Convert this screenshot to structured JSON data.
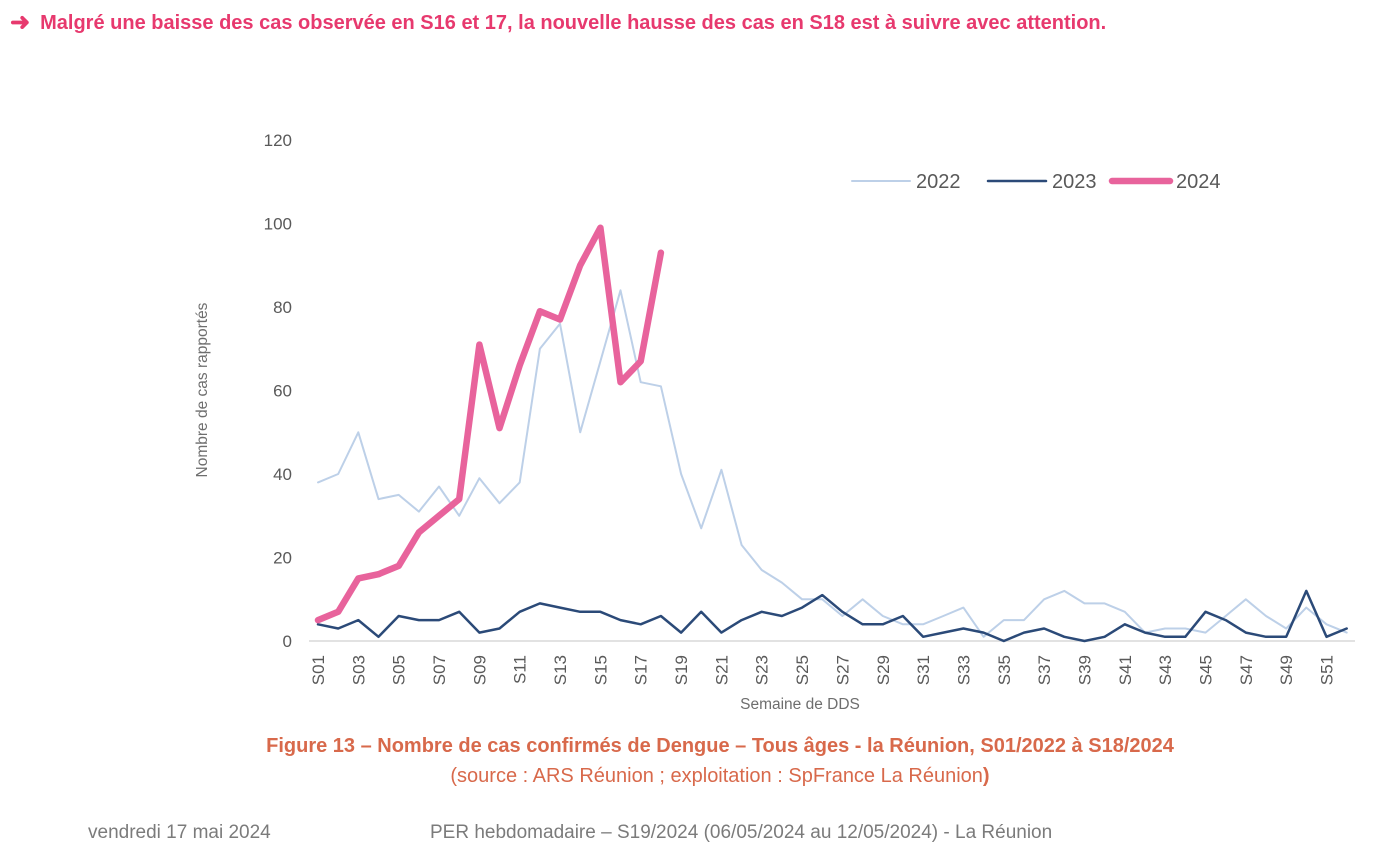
{
  "header": {
    "arrow_icon": "➜",
    "text": "Malgré une baisse des cas observée en S16 et 17, la nouvelle hausse des cas en S18 est à suivre avec attention.",
    "color": "#E7396E"
  },
  "chart_data": {
    "type": "line",
    "title": "",
    "xlabel": "Semaine de DDS",
    "ylabel": "Nombre de cas rapportés",
    "ylim": [
      0,
      120
    ],
    "ytick_step": 20,
    "x_tick_every": 2,
    "grid": false,
    "legend_position": "top-right",
    "categories": [
      "S01",
      "S02",
      "S03",
      "S04",
      "S05",
      "S06",
      "S07",
      "S08",
      "S09",
      "S10",
      "S11",
      "S12",
      "S13",
      "S14",
      "S15",
      "S16",
      "S17",
      "S18",
      "S19",
      "S20",
      "S21",
      "S22",
      "S23",
      "S24",
      "S25",
      "S26",
      "S27",
      "S28",
      "S29",
      "S30",
      "S31",
      "S32",
      "S33",
      "S34",
      "S35",
      "S36",
      "S37",
      "S38",
      "S39",
      "S40",
      "S41",
      "S42",
      "S43",
      "S44",
      "S45",
      "S46",
      "S47",
      "S48",
      "S49",
      "S50",
      "S51",
      "S52"
    ],
    "series": [
      {
        "name": "2022",
        "color": "#BDD0E8",
        "width": 2,
        "values": [
          38,
          40,
          50,
          34,
          35,
          31,
          37,
          30,
          39,
          33,
          38,
          70,
          76,
          50,
          67,
          84,
          62,
          61,
          40,
          27,
          41,
          23,
          17,
          14,
          10,
          10,
          6,
          10,
          6,
          4,
          4,
          6,
          8,
          1,
          5,
          5,
          10,
          12,
          9,
          9,
          7,
          2,
          3,
          3,
          2,
          6,
          10,
          6,
          3,
          8,
          4,
          2
        ]
      },
      {
        "name": "2023",
        "color": "#2B4A78",
        "width": 2.5,
        "values": [
          4,
          3,
          5,
          1,
          6,
          5,
          5,
          7,
          2,
          3,
          7,
          9,
          8,
          7,
          7,
          5,
          4,
          6,
          2,
          7,
          2,
          5,
          7,
          6,
          8,
          11,
          7,
          4,
          4,
          6,
          1,
          2,
          3,
          2,
          0,
          2,
          3,
          1,
          0,
          1,
          4,
          2,
          1,
          1,
          7,
          5,
          2,
          1,
          1,
          12,
          1,
          3
        ]
      },
      {
        "name": "2024",
        "color": "#E8639C",
        "width": 6.5,
        "values": [
          5,
          7,
          15,
          16,
          18,
          26,
          30,
          34,
          71,
          51,
          66,
          79,
          77,
          90,
          99,
          62,
          67,
          93
        ]
      }
    ]
  },
  "caption": {
    "title": "Figure 13 – Nombre de cas confirmés de Dengue – Tous âges - la Réunion, S01/2022 à S18/2024",
    "source": "(source : ARS Réunion ; exploitation : SpFrance La Réunion",
    "source_close": ")",
    "color": "#D8694B"
  },
  "footer": {
    "date": "vendredi 17 mai 2024",
    "document": "PER hebdomadaire – S19/2024 (06/05/2024 au 12/05/2024)  - La Réunion"
  },
  "colors": {
    "axis_text": "#595959",
    "axis_line": "#D9D9D9",
    "footer_text": "#7B7B7B"
  }
}
